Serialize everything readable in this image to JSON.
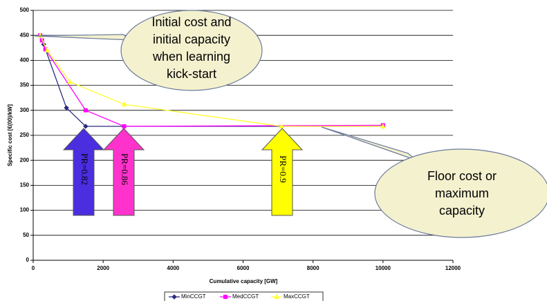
{
  "chart_data": {
    "type": "line",
    "x_label": "Cumulative capacity [GW]",
    "y_label": "Specific cost [€(00)/kW]",
    "xlim": [
      0,
      12000
    ],
    "xticks": [
      0,
      2000,
      4000,
      6000,
      8000,
      10000,
      12000
    ],
    "ylim": [
      0,
      500
    ],
    "yticks": [
      0,
      50,
      100,
      150,
      200,
      250,
      300,
      350,
      400,
      450,
      500
    ],
    "grid": true,
    "legend": "bottom",
    "series": [
      {
        "name": "MinCCGT",
        "color": "#2b2b80",
        "marker": "diamond",
        "x": [
          200,
          300,
          950,
          1500,
          10000
        ],
        "values": [
          450,
          432,
          305,
          268,
          268
        ]
      },
      {
        "name": "MedCCGT",
        "color": "#ff00ff",
        "marker": "square",
        "x": [
          200,
          250,
          350,
          1500,
          2600,
          10000
        ],
        "values": [
          450,
          440,
          422,
          300,
          268,
          270
        ]
      },
      {
        "name": "MaxCCGT",
        "color": "#ffff33",
        "marker": "triangle",
        "x": [
          200,
          400,
          1050,
          2600,
          7100,
          10000
        ],
        "values": [
          450,
          420,
          357,
          312,
          268,
          268
        ]
      }
    ],
    "callouts": [
      {
        "lines": [
          "Initial cost and",
          "initial capacity",
          "when learning",
          "kick-start"
        ]
      },
      {
        "lines": [
          "Floor cost or",
          "maximum",
          "capacity"
        ]
      }
    ],
    "arrows": [
      {
        "label": "PR=0.82",
        "color": "#4a2ee0"
      },
      {
        "label": "PR=0.86",
        "color": "#ff33cc"
      },
      {
        "label": "PR=0.9",
        "color": "#ffff00"
      }
    ]
  }
}
